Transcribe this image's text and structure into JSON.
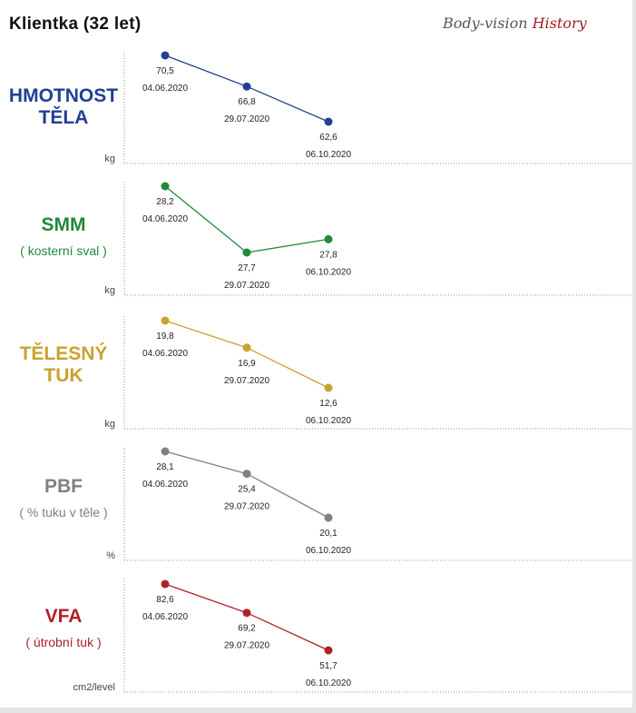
{
  "title": "Klientka (32 let)",
  "brand": {
    "part1": "Body-vision ",
    "part2": "History"
  },
  "chart_data": [
    {
      "type": "line",
      "title": "HMOTNOST TĚLA",
      "title_lines": [
        "HMOTNOST",
        "TĚLA"
      ],
      "subtitle": "",
      "unit": "kg",
      "color": "#213f95",
      "x": [
        "04.06.2020",
        "29.07.2020",
        "06.10.2020"
      ],
      "values": [
        70.5,
        66.8,
        62.6
      ],
      "value_labels": [
        "70,5",
        "66,8",
        "62,6"
      ]
    },
    {
      "type": "line",
      "title": "SMM",
      "title_lines": [
        "SMM"
      ],
      "subtitle": "( kosterní sval )",
      "unit": "kg",
      "color": "#1e8a3c",
      "x": [
        "04.06.2020",
        "29.07.2020",
        "06.10.2020"
      ],
      "values": [
        28.2,
        27.7,
        27.8
      ],
      "value_labels": [
        "28,2",
        "27,7",
        "27,8"
      ]
    },
    {
      "type": "line",
      "title": "TĚLESNÝ TUK",
      "title_lines": [
        "TĚLESNÝ",
        "TUK"
      ],
      "subtitle": "",
      "unit": "kg",
      "color": "#c9a230",
      "x": [
        "04.06.2020",
        "29.07.2020",
        "06.10.2020"
      ],
      "values": [
        19.8,
        16.9,
        12.6
      ],
      "value_labels": [
        "19,8",
        "16,9",
        "12,6"
      ]
    },
    {
      "type": "line",
      "title": "PBF",
      "title_lines": [
        "PBF"
      ],
      "subtitle": "( % tuku v těle )",
      "unit": "%",
      "color": "#808080",
      "x": [
        "04.06.2020",
        "29.07.2020",
        "06.10.2020"
      ],
      "values": [
        28.1,
        25.4,
        20.1
      ],
      "value_labels": [
        "28,1",
        "25,4",
        "20,1"
      ]
    },
    {
      "type": "line",
      "title": "VFA",
      "title_lines": [
        "VFA"
      ],
      "subtitle": "( útrobní tuk )",
      "unit": "cm2/level",
      "color": "#b0202a",
      "x": [
        "04.06.2020",
        "29.07.2020",
        "06.10.2020"
      ],
      "values": [
        82.6,
        69.2,
        51.7
      ],
      "value_labels": [
        "82,6",
        "69,2",
        "51,7"
      ]
    }
  ]
}
